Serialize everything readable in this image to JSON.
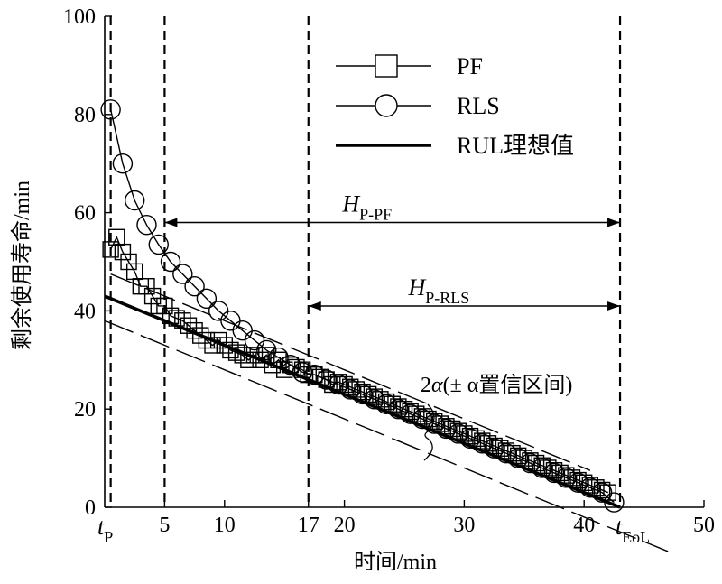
{
  "chart_data": {
    "type": "line",
    "title": "",
    "xlabel": "时间/min",
    "ylabel": "剩余使用寿命/min",
    "xlim": [
      0,
      50
    ],
    "ylim": [
      0,
      100
    ],
    "grid": false,
    "legend_position": "top-center",
    "x_ticks": [
      {
        "value": 5,
        "label": "5"
      },
      {
        "value": 10,
        "label": "10"
      },
      {
        "value": 17,
        "label": "17"
      },
      {
        "value": 20,
        "label": "20"
      },
      {
        "value": 30,
        "label": "30"
      },
      {
        "value": 40,
        "label": "40"
      },
      {
        "value": 50,
        "label": "50"
      }
    ],
    "y_ticks": [
      {
        "value": 0,
        "label": "0"
      },
      {
        "value": 20,
        "label": "20"
      },
      {
        "value": 40,
        "label": "40"
      },
      {
        "value": 60,
        "label": "60"
      },
      {
        "value": 80,
        "label": "80"
      },
      {
        "value": 100,
        "label": "100"
      }
    ],
    "special_ticks": {
      "tp": {
        "value": 0.5,
        "main": "t",
        "sub": "P"
      },
      "teol": {
        "value": 43,
        "main": "t",
        "sub": "EoL"
      }
    },
    "vlines": [
      0.5,
      5,
      17,
      43
    ],
    "series": [
      {
        "name": "PF",
        "marker": "square",
        "x": [
          0.5,
          1,
          1.5,
          2,
          2.5,
          3,
          3.5,
          4,
          4.5,
          5,
          5.5,
          6,
          6.5,
          7,
          7.5,
          8,
          8.5,
          9,
          9.5,
          10,
          10.5,
          11,
          11.5,
          12,
          12.5,
          13,
          13.5,
          14,
          14.5,
          15,
          15.5,
          16,
          16.5,
          17,
          17.5,
          18,
          18.5,
          19,
          19.5,
          20,
          20.5,
          21,
          21.5,
          22,
          22.5,
          23,
          23.5,
          24,
          24.5,
          25,
          25.5,
          26,
          26.5,
          27,
          27.5,
          28,
          28.5,
          29,
          29.5,
          30,
          30.5,
          31,
          31.5,
          32,
          32.5,
          33,
          33.5,
          34,
          34.5,
          35,
          35.5,
          36,
          36.5,
          37,
          37.5,
          38,
          38.5,
          39,
          39.5,
          40,
          40.5,
          41,
          41.5,
          42
        ],
        "values": [
          52.5,
          55,
          52,
          50,
          48,
          45,
          45,
          43,
          41,
          41,
          39,
          38.5,
          38,
          37,
          36,
          35,
          34,
          33,
          34,
          33,
          32,
          31.5,
          31,
          30,
          31,
          30,
          31,
          29,
          30,
          28,
          29,
          28.5,
          28,
          27,
          27,
          26.5,
          26,
          25,
          25.5,
          25,
          24.5,
          24,
          23.5,
          23,
          22.5,
          22,
          21.5,
          21,
          20.5,
          20,
          19.5,
          19,
          18.5,
          18,
          17.5,
          17,
          16.5,
          16,
          15.5,
          15,
          14.5,
          14,
          13.5,
          13,
          12.5,
          12,
          11.5,
          11,
          10.5,
          10,
          9.5,
          9,
          8.5,
          8,
          7.5,
          7,
          6.5,
          6,
          5.5,
          5,
          4.5,
          4,
          3.5,
          3
        ]
      },
      {
        "name": "RLS",
        "marker": "circle",
        "x": [
          0.5,
          1.5,
          2.5,
          3.5,
          4.5,
          5.5,
          6.5,
          7.5,
          8.5,
          9.5,
          10.5,
          11.5,
          12.5,
          13.5,
          14.5,
          15.5,
          16.5,
          17.5,
          18.5,
          19.5,
          20.5,
          21.5,
          22.5,
          23.5,
          24.5,
          25.5,
          26.5,
          27.5,
          28.5,
          29.5,
          30.5,
          31.5,
          32.5,
          33.5,
          34.5,
          35.5,
          36.5,
          37.5,
          38.5,
          39.5,
          40.5,
          41.5,
          42.5
        ],
        "values": [
          81,
          70,
          62.5,
          57.5,
          53.5,
          50,
          47.5,
          45,
          42.5,
          40,
          38,
          36,
          34,
          32,
          30.5,
          29,
          27.5,
          27,
          26,
          25,
          24,
          23,
          22,
          21,
          20,
          19,
          18,
          17,
          16,
          15,
          14,
          13,
          12,
          11,
          10,
          9,
          8,
          7,
          6,
          5,
          4,
          3,
          1
        ]
      },
      {
        "name": "RUL理想值",
        "marker": "none",
        "x": [
          0,
          43
        ],
        "values": [
          43,
          0
        ]
      }
    ],
    "annotations": {
      "hp_pf": {
        "main": "H",
        "sub": "P-PF",
        "from": 5,
        "to": 43,
        "y": 58
      },
      "hp_rls": {
        "main": "H",
        "sub": "P-RLS",
        "from": 17,
        "to": 43,
        "y": 41
      },
      "alpha": "2α(± α置信区间)",
      "confidence_bounds": [
        {
          "x": [
            0.5,
            40.5
          ],
          "values": [
            47.5,
            7.5
          ]
        },
        {
          "x": [
            0,
            47
          ],
          "values": [
            38,
            -9
          ]
        }
      ]
    }
  }
}
